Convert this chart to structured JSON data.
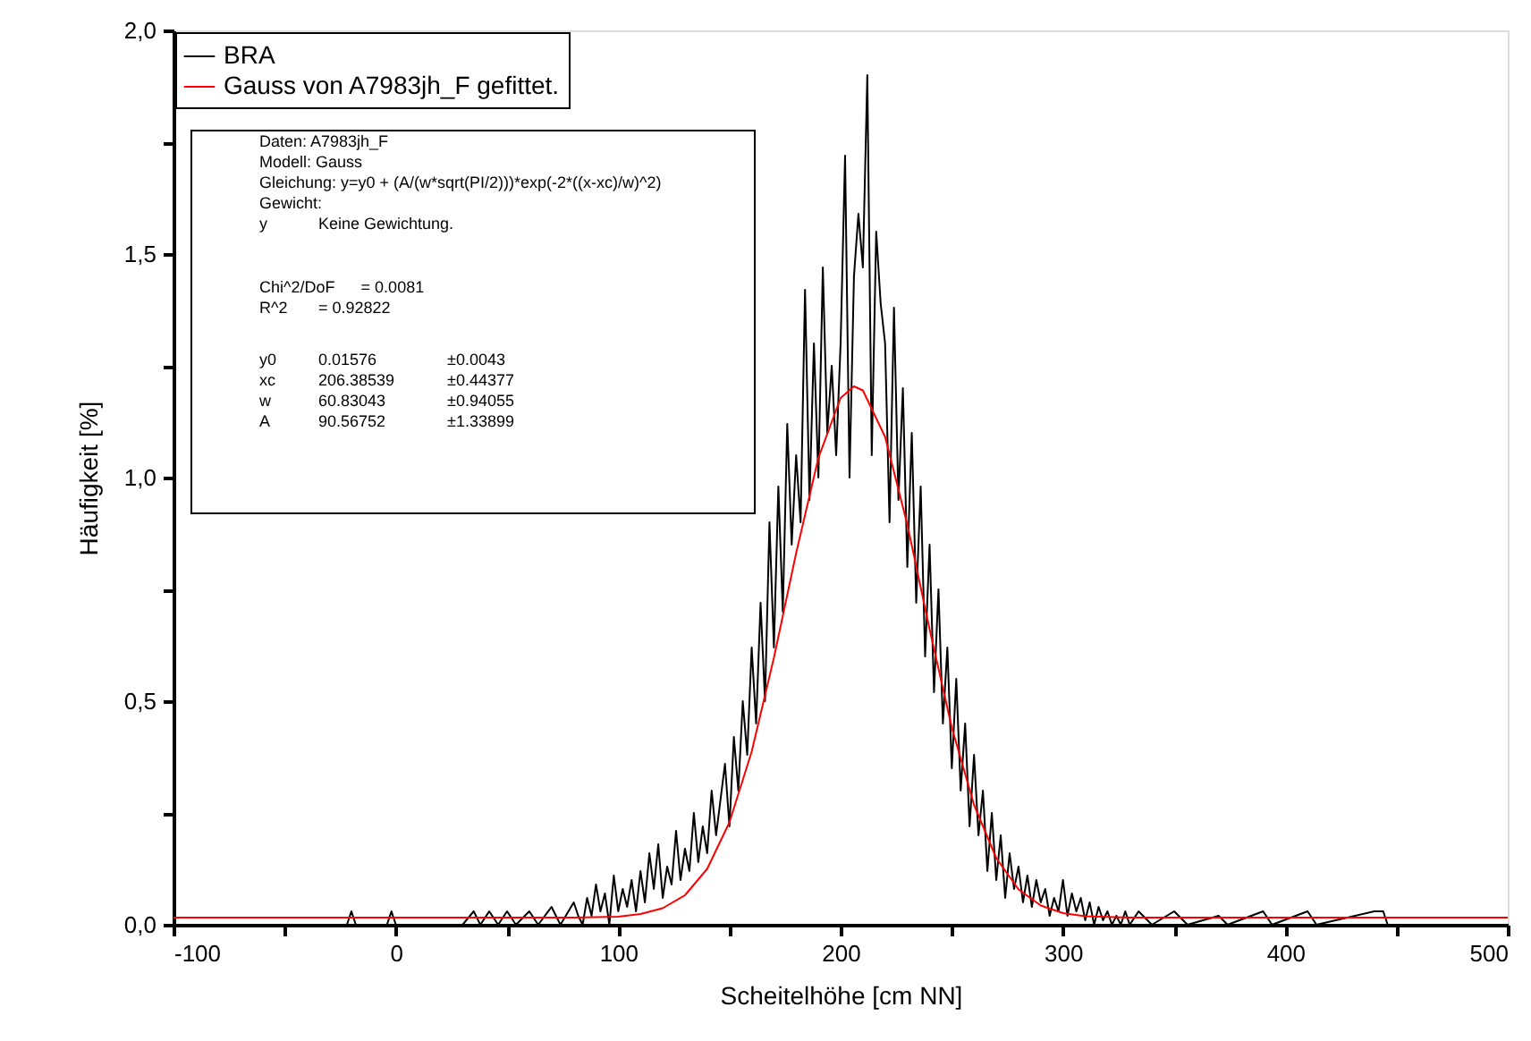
{
  "chart_data": {
    "type": "line",
    "xlabel": "Scheitelhöhe [cm NN]",
    "ylabel": "Häufigkeit [%]",
    "xlim": [
      -100,
      500
    ],
    "ylim": [
      0,
      2.0
    ],
    "xticks": [
      -100,
      {
        "value": -50,
        "label": null
      },
      0,
      {
        "value": 50,
        "label": null
      },
      100,
      {
        "value": 150,
        "label": null
      },
      200,
      {
        "value": 250,
        "label": null
      },
      300,
      {
        "value": 350,
        "label": null
      },
      400,
      {
        "value": 450,
        "label": null
      },
      500
    ],
    "yticks": [
      {
        "value": 0,
        "label": "0,0"
      },
      {
        "value": 0.25,
        "label": null
      },
      {
        "value": 0.5,
        "label": "0,5"
      },
      {
        "value": 0.75,
        "label": null
      },
      {
        "value": 1.0,
        "label": "1,0"
      },
      {
        "value": 1.25,
        "label": null
      },
      {
        "value": 1.5,
        "label": "1,5"
      },
      {
        "value": 1.75,
        "label": null
      },
      {
        "value": 2.0,
        "label": "2,0"
      }
    ],
    "grid": false,
    "legend": "top left",
    "marker": "none",
    "line_style": "solid",
    "series": [
      {
        "name": "BRA",
        "color": "#000000",
        "x": [
          -22,
          -20,
          -18,
          -4,
          -2,
          0,
          30,
          35,
          38,
          42,
          46,
          50,
          54,
          60,
          64,
          70,
          74,
          80,
          82,
          84,
          86,
          88,
          90,
          92,
          94,
          96,
          98,
          100,
          102,
          104,
          106,
          108,
          110,
          112,
          114,
          116,
          118,
          120,
          122,
          124,
          126,
          128,
          130,
          132,
          134,
          136,
          138,
          140,
          142,
          144,
          146,
          148,
          150,
          152,
          154,
          156,
          158,
          160,
          162,
          164,
          166,
          168,
          170,
          172,
          174,
          176,
          178,
          180,
          182,
          184,
          186,
          188,
          190,
          192,
          194,
          196,
          198,
          200,
          202,
          204,
          206,
          208,
          210,
          212,
          214,
          216,
          218,
          220,
          222,
          224,
          226,
          228,
          230,
          232,
          234,
          236,
          238,
          240,
          242,
          244,
          246,
          248,
          250,
          252,
          254,
          256,
          258,
          260,
          262,
          264,
          266,
          268,
          270,
          272,
          274,
          276,
          278,
          280,
          282,
          284,
          286,
          288,
          290,
          292,
          294,
          296,
          298,
          300,
          302,
          304,
          306,
          308,
          310,
          312,
          314,
          316,
          318,
          320,
          322,
          324,
          326,
          328,
          330,
          334,
          340,
          350,
          356,
          370,
          374,
          390,
          394,
          410,
          414,
          440,
          444,
          446
        ],
        "values": [
          0,
          0.03,
          0,
          0,
          0.03,
          0,
          0,
          0.03,
          0,
          0.03,
          0,
          0.03,
          0,
          0.03,
          0,
          0.04,
          0,
          0.05,
          0.02,
          0,
          0.06,
          0.02,
          0.09,
          0.03,
          0.07,
          0,
          0.11,
          0.03,
          0.08,
          0.04,
          0.1,
          0.03,
          0.12,
          0.05,
          0.16,
          0.08,
          0.18,
          0.06,
          0.13,
          0.09,
          0.21,
          0.1,
          0.17,
          0.12,
          0.25,
          0.14,
          0.22,
          0.16,
          0.3,
          0.2,
          0.28,
          0.36,
          0.22,
          0.42,
          0.3,
          0.5,
          0.38,
          0.62,
          0.45,
          0.72,
          0.5,
          0.9,
          0.62,
          0.98,
          0.7,
          1.12,
          0.85,
          1.05,
          0.9,
          1.42,
          0.95,
          1.3,
          1.0,
          1.47,
          1.1,
          1.25,
          1.05,
          1.3,
          1.72,
          1.0,
          1.45,
          1.59,
          1.47,
          1.9,
          1.05,
          1.55,
          1.39,
          1.3,
          0.9,
          1.38,
          0.95,
          1.2,
          0.8,
          1.1,
          0.72,
          0.98,
          0.6,
          0.85,
          0.52,
          0.75,
          0.45,
          0.62,
          0.35,
          0.55,
          0.3,
          0.45,
          0.22,
          0.38,
          0.2,
          0.3,
          0.12,
          0.25,
          0.1,
          0.2,
          0.06,
          0.16,
          0.08,
          0.13,
          0.05,
          0.11,
          0.04,
          0.1,
          0.05,
          0.08,
          0.02,
          0.06,
          0.03,
          0.1,
          0.02,
          0.07,
          0.03,
          0.06,
          0.01,
          0.05,
          0,
          0.04,
          0.01,
          0.03,
          0,
          0.02,
          0,
          0.03,
          0,
          0.03,
          0,
          0.03,
          0,
          0.02,
          0,
          0.03,
          0,
          0.03,
          0,
          0.03,
          0.03,
          0
        ]
      },
      {
        "name": "Gauss von A7983jh_F gefittet.",
        "color": "#ff0000",
        "x": [
          -100,
          50,
          80,
          100,
          110,
          120,
          130,
          140,
          150,
          160,
          170,
          180,
          190,
          200,
          206,
          210,
          220,
          230,
          240,
          250,
          260,
          270,
          280,
          290,
          300,
          310,
          330,
          500
        ],
        "values": [
          0.016,
          0.016,
          0.016,
          0.018,
          0.024,
          0.037,
          0.066,
          0.125,
          0.229,
          0.387,
          0.597,
          0.831,
          1.044,
          1.178,
          1.204,
          1.195,
          1.091,
          0.895,
          0.661,
          0.441,
          0.268,
          0.149,
          0.079,
          0.043,
          0.026,
          0.019,
          0.016,
          0.016
        ]
      }
    ],
    "annotations": [
      "Daten: A7983jh_F",
      "Modell: Gauss",
      "Gleichung: y=y0 + (A/(w*sqrt(PI/2)))*exp(-2*((x-xc)/w)^2)",
      "Gewicht:",
      "y\tKeine Gewichtung.",
      "Chi^2/DoF\t= 0.0081",
      "R^2\t= 0.92822",
      "y0\t0.01576\t±0.0043",
      "xc\t206.38539\t±0.44377",
      "w\t60.83043\t±0.94055",
      "A\t90.56752\t±1.33899"
    ]
  }
}
